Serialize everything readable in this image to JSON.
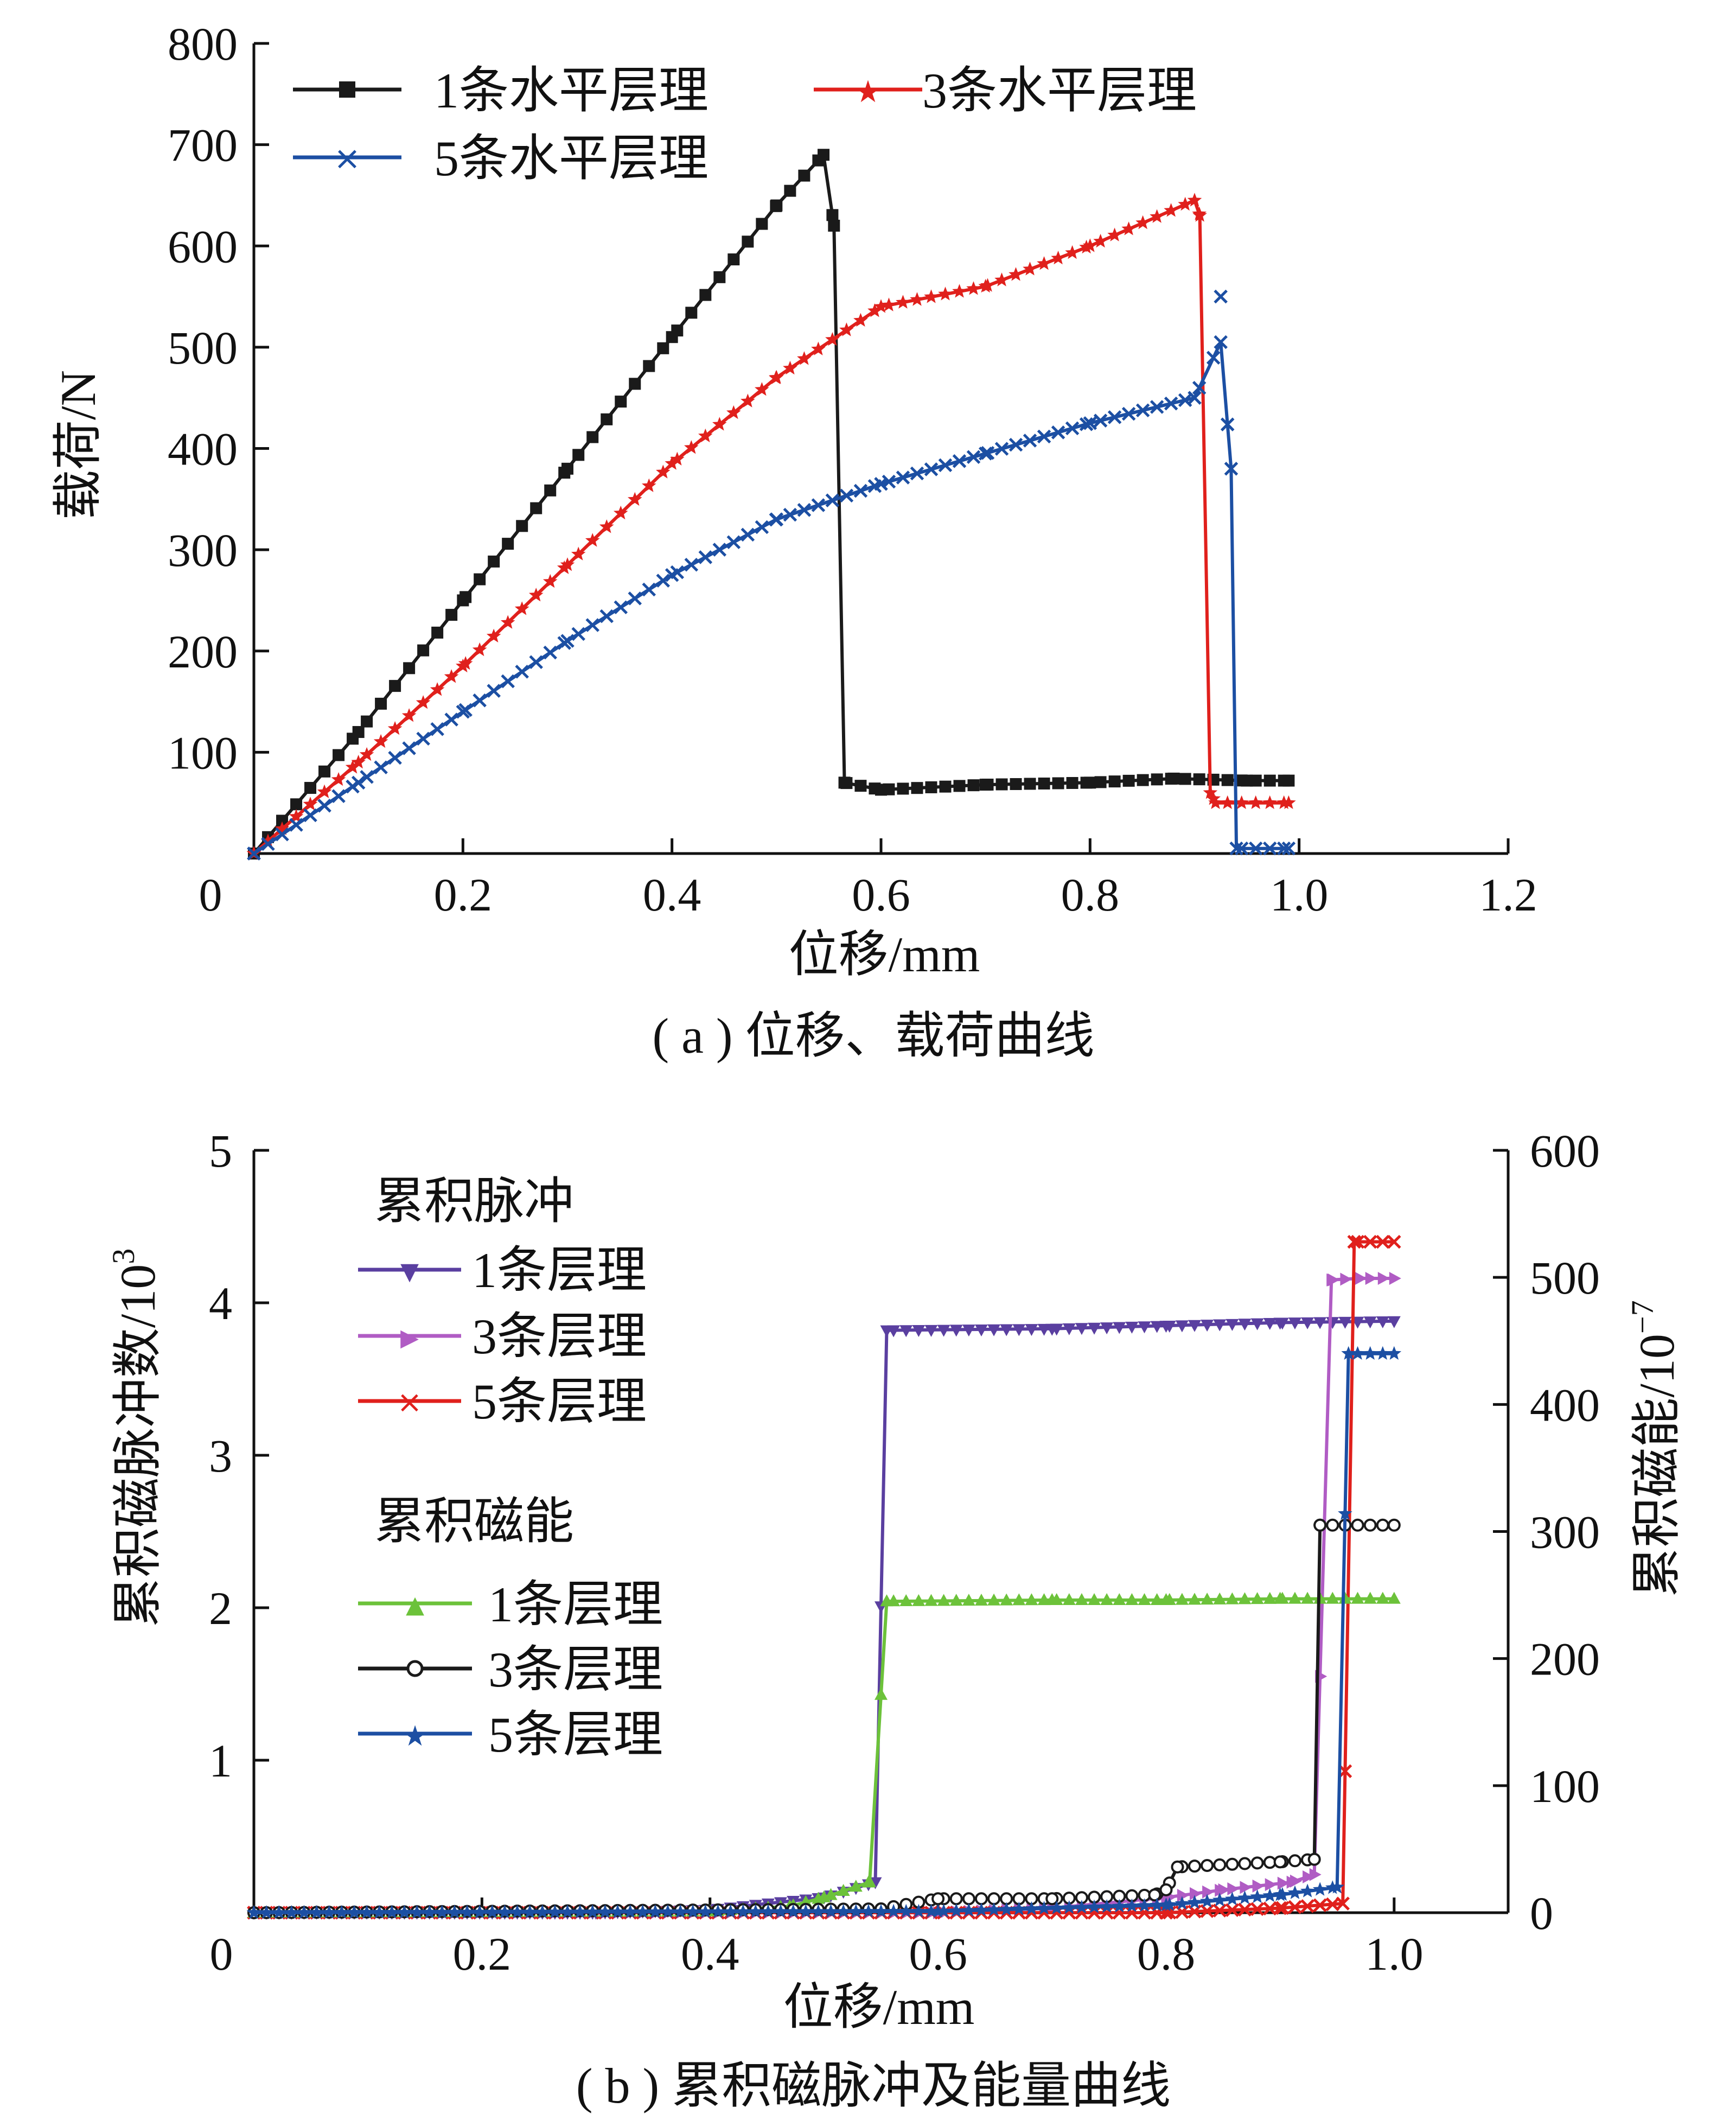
{
  "charts": [
    {
      "type": "line",
      "caption": "( a ) 位移、载荷曲线",
      "xlabel": "位移/mm",
      "ylabel": "载荷/N",
      "xlim": [
        0,
        1.2
      ],
      "ylim": [
        0,
        800
      ],
      "xticks": [
        "0",
        "0.2",
        "0.4",
        "0.6",
        "0.8",
        "1.0",
        "1.2"
      ],
      "xtick_values": [
        0,
        0.2,
        0.4,
        0.6,
        0.8,
        1.0,
        1.2
      ],
      "yticks": [
        "800",
        "700",
        "600",
        "500",
        "400",
        "300",
        "200",
        "100"
      ],
      "ytick_values": [
        800,
        700,
        600,
        500,
        400,
        300,
        200,
        100
      ],
      "legend": [
        "1条水平层理",
        "3条水平层理",
        "5条水平层理"
      ],
      "series": [
        {
          "name": "1条水平层理",
          "color": "#1a1a1a",
          "marker": "square",
          "points": [
            [
              0,
              0
            ],
            [
              0.1,
              120
            ],
            [
              0.2,
              250
            ],
            [
              0.3,
              380
            ],
            [
              0.4,
              510
            ],
            [
              0.5,
              640
            ],
            [
              0.545,
              690
            ],
            [
              0.555,
              620
            ],
            [
              0.565,
              70
            ],
            [
              0.6,
              63
            ],
            [
              0.7,
              68
            ],
            [
              0.8,
              70
            ],
            [
              0.88,
              74
            ],
            [
              0.95,
              72
            ],
            [
              0.99,
              72
            ]
          ]
        },
        {
          "name": "3条水平层理",
          "color": "#e0201c",
          "marker": "star",
          "points": [
            [
              0,
              0
            ],
            [
              0.1,
              90
            ],
            [
              0.2,
              185
            ],
            [
              0.3,
              285
            ],
            [
              0.4,
              385
            ],
            [
              0.5,
              470
            ],
            [
              0.6,
              540
            ],
            [
              0.7,
              560
            ],
            [
              0.8,
              600
            ],
            [
              0.9,
              645
            ],
            [
              0.905,
              630
            ],
            [
              0.915,
              60
            ],
            [
              0.92,
              50
            ],
            [
              0.99,
              50
            ]
          ]
        },
        {
          "name": "5条水平层理",
          "color": "#1c4fa3",
          "marker": "x",
          "points": [
            [
              0,
              0
            ],
            [
              0.1,
              70
            ],
            [
              0.2,
              140
            ],
            [
              0.3,
              210
            ],
            [
              0.4,
              275
            ],
            [
              0.5,
              330
            ],
            [
              0.6,
              365
            ],
            [
              0.7,
              395
            ],
            [
              0.8,
              425
            ],
            [
              0.9,
              450
            ],
            [
              0.925,
              505
            ],
            [
              0.935,
              380
            ],
            [
              0.94,
              5
            ],
            [
              0.99,
              5
            ]
          ]
        }
      ],
      "outlier": {
        "series": "5条水平层理",
        "x": 0.925,
        "y": 550
      }
    },
    {
      "type": "line",
      "caption": "( b ) 累积磁脉冲及能量曲线",
      "xlabel": "位移/mm",
      "ylabel_left": "累积磁脉冲数/10",
      "ylabel_left_sup": "3",
      "ylabel_right": "累积磁能/10",
      "ylabel_right_sup": "−7",
      "xlim": [
        0,
        1.1
      ],
      "ylim_left": [
        0,
        5
      ],
      "ylim_right": [
        0,
        600
      ],
      "xticks": [
        "0",
        "0.2",
        "0.4",
        "0.6",
        "0.8",
        "1.0"
      ],
      "xtick_values": [
        0,
        0.2,
        0.4,
        0.6,
        0.8,
        1.0
      ],
      "yticks_left": [
        "5",
        "4",
        "3",
        "2",
        "1"
      ],
      "ytick_left_values": [
        5,
        4,
        3,
        2,
        1
      ],
      "yticks_right": [
        "600",
        "500",
        "400",
        "300",
        "200",
        "100",
        "0"
      ],
      "ytick_right_values": [
        600,
        500,
        400,
        300,
        200,
        100,
        0
      ],
      "legend_groups": [
        {
          "title": "累积脉冲",
          "items": [
            "1条层理",
            "3条层理",
            "5条层理"
          ]
        },
        {
          "title": "累积磁能",
          "items": [
            "1条层理",
            "3条层理",
            "5条层理"
          ]
        }
      ],
      "series": [
        {
          "name": "累积脉冲 1条层理",
          "axis": "left",
          "color": "#5a3fa0",
          "marker": "tri-down",
          "points": [
            [
              0,
              0
            ],
            [
              0.3,
              0
            ],
            [
              0.4,
              0.02
            ],
            [
              0.5,
              0.1
            ],
            [
              0.545,
              0.2
            ],
            [
              0.555,
              3.82
            ],
            [
              0.7,
              3.83
            ],
            [
              0.8,
              3.85
            ],
            [
              0.9,
              3.87
            ],
            [
              1.0,
              3.88
            ]
          ]
        },
        {
          "name": "累积脉冲 3条层理",
          "axis": "left",
          "color": "#b05cc4",
          "marker": "tri-right",
          "points": [
            [
              0,
              0
            ],
            [
              0.6,
              0
            ],
            [
              0.7,
              0.03
            ],
            [
              0.8,
              0.1
            ],
            [
              0.85,
              0.15
            ],
            [
              0.91,
              0.2
            ],
            [
              0.93,
              0.25
            ],
            [
              0.945,
              4.15
            ],
            [
              0.97,
              4.16
            ],
            [
              1.0,
              4.16
            ]
          ]
        },
        {
          "name": "累积脉冲 5条层理",
          "axis": "left",
          "color": "#e0201c",
          "marker": "x",
          "points": [
            [
              0,
              0
            ],
            [
              0.8,
              0
            ],
            [
              0.9,
              0.03
            ],
            [
              0.955,
              0.06
            ],
            [
              0.965,
              4.4
            ],
            [
              1.0,
              4.4
            ]
          ]
        },
        {
          "name": "累积磁能 1条层理",
          "axis": "right",
          "color": "#6cc23a",
          "marker": "tri-up",
          "points": [
            [
              0,
              0
            ],
            [
              0.4,
              1
            ],
            [
              0.47,
              5
            ],
            [
              0.5,
              12
            ],
            [
              0.54,
              24
            ],
            [
              0.555,
              245
            ],
            [
              0.7,
              246
            ],
            [
              0.8,
              246
            ],
            [
              0.9,
              247
            ],
            [
              1.0,
              247
            ]
          ]
        },
        {
          "name": "累积磁能 3条层理",
          "axis": "right",
          "color": "#1a1a1a",
          "marker": "circle",
          "points": [
            [
              0,
              0
            ],
            [
              0.55,
              3
            ],
            [
              0.6,
              11
            ],
            [
              0.7,
              11
            ],
            [
              0.79,
              14
            ],
            [
              0.8,
              18
            ],
            [
              0.81,
              36
            ],
            [
              0.9,
              40
            ],
            [
              0.93,
              42
            ],
            [
              0.935,
              305
            ],
            [
              1.0,
              305
            ]
          ]
        },
        {
          "name": "累积磁能 5条层理",
          "axis": "right",
          "color": "#1c4fa3",
          "marker": "star",
          "points": [
            [
              0,
              0
            ],
            [
              0.6,
              1
            ],
            [
              0.8,
              6
            ],
            [
              0.9,
              14
            ],
            [
              0.95,
              20
            ],
            [
              0.96,
              440
            ],
            [
              1.0,
              440
            ]
          ]
        }
      ]
    }
  ]
}
